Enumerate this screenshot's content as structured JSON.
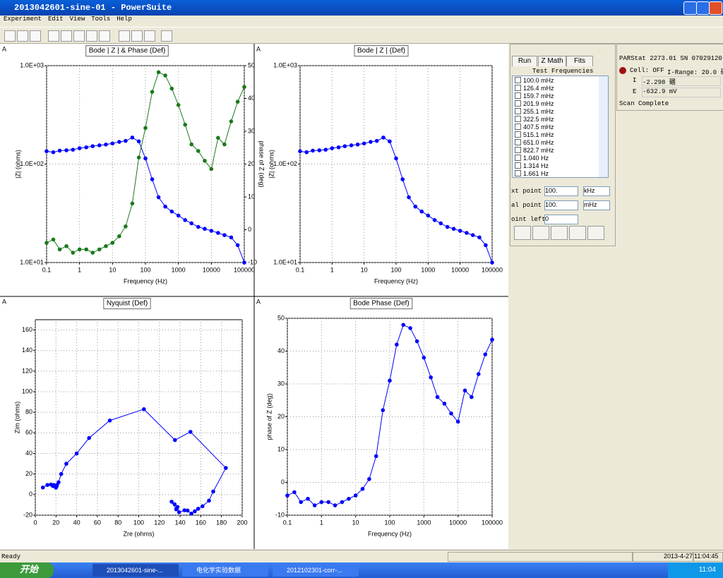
{
  "window": {
    "title": "2013042601-sine-01 - PowerSuite",
    "menu": [
      "Experiment",
      "Edit",
      "View",
      "Tools",
      "Help"
    ]
  },
  "run_panel": {
    "tabs": [
      "Run",
      "Z Math",
      "Fits"
    ],
    "list_title": "Test Frequencies",
    "test_frequencies": [
      "100.0 mHz",
      "126.4 mHz",
      "159.7 mHz",
      "201.9 mHz",
      "255.1 mHz",
      "322.5 mHz",
      "407.5 mHz",
      "515.1 mHz",
      "651.0 mHz",
      "822.7 mHz",
      "1.040  Hz",
      "1.314  Hz",
      "1.661  Hz"
    ],
    "fields": [
      {
        "label": "xt point",
        "value": "100.",
        "unit": "kHz"
      },
      {
        "label": "al point",
        "value": "100.",
        "unit": "mHz"
      },
      {
        "label": "oint left",
        "value": "0"
      }
    ]
  },
  "status_panel": {
    "instrument": "PARStat 2273.01 SN 07029120",
    "cell": "Cell: OFF",
    "range": "I-Range: 20.0 碅",
    "i_label": "I",
    "i_value": "-2.298 碅",
    "e_label": "E",
    "e_value": "-632.9 mV",
    "state": "Scan Complete"
  },
  "status_bar": {
    "text": "Ready",
    "date": "2013-4-27",
    "time": "11:04:45"
  },
  "taskbar": {
    "start": "开始",
    "items": [
      "2013042601-sine-...",
      "电化学实验数据",
      "2012102301-corr-..."
    ],
    "clock": "11:04"
  },
  "chart_data": [
    {
      "type": "line",
      "corner_label": "A",
      "title": "Bode | Z | & Phase (Def)",
      "x_label": "Frequency (Hz)",
      "y_label": "|Z| (ohms)",
      "y2_label": "phase of Z (deg)",
      "log_x": true,
      "log_y": true,
      "grid": true,
      "x": [
        0.1,
        0.16,
        0.25,
        0.4,
        0.63,
        1,
        1.6,
        2.5,
        4,
        6.3,
        10,
        16,
        25,
        40,
        63,
        100,
        160,
        250,
        400,
        630,
        1000,
        1600,
        2500,
        4000,
        6300,
        10000,
        16000,
        25000,
        40000,
        63000,
        100000
      ],
      "xlim": [
        0.1,
        100000
      ],
      "xticks": [
        0.1,
        1,
        10,
        100,
        1000,
        10000,
        100000
      ],
      "ylim": [
        10,
        1000
      ],
      "yticks": [
        {
          "value": 10,
          "label": "1.0E+01"
        },
        {
          "value": 100,
          "label": "1.0E+02"
        },
        {
          "value": 1000,
          "label": "1.0E+03"
        }
      ],
      "y2lim": [
        -10,
        50
      ],
      "y2ticks": [
        -10,
        0,
        10,
        20,
        30,
        40,
        50
      ],
      "series": [
        {
          "color": "#0000ff",
          "values": [
            135,
            132,
            137,
            138,
            140,
            145,
            148,
            152,
            155,
            158,
            162,
            168,
            172,
            186,
            170,
            114,
            70,
            46,
            37,
            33,
            30,
            27,
            25,
            23,
            22,
            21,
            20,
            19,
            18,
            15,
            10
          ]
        },
        {
          "color": "#1a7a1a",
          "axis": "y2",
          "values": [
            -4,
            -3,
            -6,
            -5,
            -7,
            -6,
            -6,
            -7,
            -6,
            -5,
            -4,
            -2,
            1,
            8,
            22,
            31,
            42,
            48,
            47,
            43,
            38,
            32,
            26,
            24,
            21,
            18.5,
            28,
            26,
            33,
            39,
            43.5
          ]
        }
      ]
    },
    {
      "type": "line",
      "corner_label": "A",
      "title": "Bode | Z | (Def)",
      "x_label": "Frequency (Hz)",
      "y_label": "|Z| (ohms)",
      "log_x": true,
      "log_y": true,
      "grid": true,
      "x": [
        0.1,
        0.16,
        0.25,
        0.4,
        0.63,
        1,
        1.6,
        2.5,
        4,
        6.3,
        10,
        16,
        25,
        40,
        63,
        100,
        160,
        250,
        400,
        630,
        1000,
        1600,
        2500,
        4000,
        6300,
        10000,
        16000,
        25000,
        40000,
        63000,
        100000
      ],
      "xlim": [
        0.1,
        100000
      ],
      "xticks": [
        0.1,
        1,
        10,
        100,
        1000,
        10000,
        100000
      ],
      "ylim": [
        10,
        1000
      ],
      "yticks": [
        {
          "value": 10,
          "label": "1.0E+01"
        },
        {
          "value": 100,
          "label": "1.0E+02"
        },
        {
          "value": 1000,
          "label": "1.0E+03"
        }
      ],
      "series": [
        {
          "color": "#0000ff",
          "values": [
            135,
            132,
            137,
            138,
            140,
            145,
            148,
            152,
            155,
            158,
            162,
            168,
            172,
            186,
            170,
            114,
            70,
            46,
            37,
            33,
            30,
            27,
            25,
            23,
            22,
            21,
            20,
            19,
            18,
            15,
            10
          ]
        }
      ]
    },
    {
      "type": "line",
      "corner_label": "A",
      "title": "Nyquist (Def)",
      "x_label": "Zre (ohms)",
      "y_label": "Zim (ohms)",
      "log_x": false,
      "log_y": false,
      "grid": true,
      "x": [
        134.7,
        131.8,
        136.2,
        137.5,
        139,
        144.2,
        147.2,
        150.9,
        154.2,
        157.4,
        161.6,
        167.9,
        172,
        184.2,
        150,
        135,
        105,
        72,
        52,
        40,
        30,
        25,
        22.5,
        21,
        20.5,
        19.9,
        17.7,
        17.1,
        15.1,
        11.7,
        7.3
      ],
      "xlim": [
        0,
        200
      ],
      "xticks": [
        0,
        20,
        40,
        60,
        80,
        100,
        120,
        140,
        160,
        180,
        200
      ],
      "ylim": [
        -20,
        170
      ],
      "yticks": [
        -20,
        0,
        20,
        40,
        60,
        80,
        100,
        120,
        140,
        160
      ],
      "series": [
        {
          "color": "#0000ff",
          "values": [
            -9.4,
            -6.9,
            -14.3,
            -12,
            -17.1,
            -15.2,
            -15.5,
            -18.5,
            -16.2,
            -13.8,
            -11.3,
            -5.9,
            3,
            25.9,
            61,
            53,
            83,
            72,
            55,
            40,
            30,
            20,
            12,
            9.4,
            7.9,
            6.7,
            9.4,
            8.3,
            9.8,
            9.4,
            6.9
          ]
        }
      ]
    },
    {
      "type": "line",
      "corner_label": "A",
      "title": "Bode Phase (Def)",
      "x_label": "Frequency (Hz)",
      "y_label": "phase of Z (deg)",
      "log_x": true,
      "log_y": false,
      "grid": true,
      "x": [
        0.1,
        0.16,
        0.25,
        0.4,
        0.63,
        1,
        1.6,
        2.5,
        4,
        6.3,
        10,
        16,
        25,
        40,
        63,
        100,
        160,
        250,
        400,
        630,
        1000,
        1600,
        2500,
        4000,
        6300,
        10000,
        16000,
        25000,
        40000,
        63000,
        100000
      ],
      "xlim": [
        0.1,
        100000
      ],
      "xticks": [
        0.1,
        1,
        10,
        100,
        1000,
        10000,
        100000
      ],
      "ylim": [
        -10,
        50
      ],
      "yticks": [
        -10,
        0,
        10,
        20,
        30,
        40,
        50
      ],
      "series": [
        {
          "color": "#0000ff",
          "values": [
            -4,
            -3,
            -6,
            -5,
            -7,
            -6,
            -6,
            -7,
            -6,
            -5,
            -4,
            -2,
            1,
            8,
            22,
            31,
            42,
            48,
            47,
            43,
            38,
            32,
            26,
            24,
            21,
            18.5,
            28,
            26,
            33,
            39,
            43.5
          ]
        }
      ]
    }
  ]
}
